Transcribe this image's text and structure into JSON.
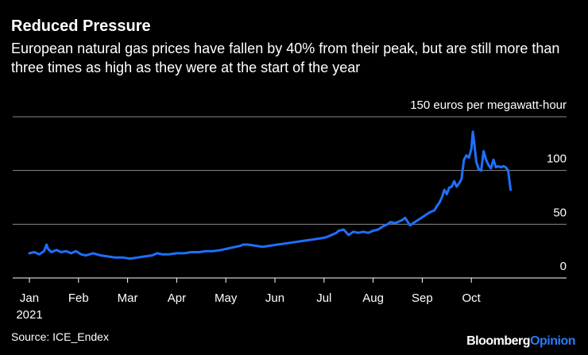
{
  "title": "Reduced Pressure",
  "subtitle": "European natural gas prices have fallen by 40% from their peak, but are still more than three times as high as they were at the start of the year",
  "source": "Source: ICE_Endex",
  "brand": {
    "part1": "Bloomberg",
    "part2": "Opinion"
  },
  "colors": {
    "background": "#000000",
    "line": "#1f6fff",
    "grid": "#8a8a8a",
    "text": "#ffffff",
    "brand_accent": "#2b7bf5"
  },
  "chart_data": {
    "type": "line",
    "title": "Reduced Pressure",
    "xlabel": "",
    "ylabel": "euros per megawatt-hour",
    "unit_label": "150 euros per megawatt-hour",
    "ylim": [
      0,
      150
    ],
    "yticks": [
      0,
      50,
      100,
      150
    ],
    "ytick_labels": [
      "0",
      "50",
      "100",
      "150 euros per megawatt-hour"
    ],
    "xlim": [
      0,
      11
    ],
    "xticks": [
      0,
      1,
      2,
      3,
      4,
      5,
      6,
      7,
      8,
      9
    ],
    "xtick_labels": [
      "Jan",
      "Feb",
      "Mar",
      "Apr",
      "May",
      "Jun",
      "Jul",
      "Aug",
      "Sep",
      "Oct"
    ],
    "year_label": "2021",
    "series": [
      {
        "name": "European natural gas price",
        "x": [
          0,
          0.1,
          0.2,
          0.3,
          0.35,
          0.38,
          0.45,
          0.55,
          0.65,
          0.75,
          0.85,
          0.95,
          1.05,
          1.15,
          1.3,
          1.45,
          1.6,
          1.75,
          1.9,
          2.05,
          2.2,
          2.35,
          2.5,
          2.6,
          2.7,
          2.85,
          3.0,
          3.15,
          3.3,
          3.45,
          3.6,
          3.75,
          3.9,
          4.0,
          4.1,
          4.2,
          4.3,
          4.35,
          4.45,
          4.6,
          4.75,
          4.9,
          5.05,
          5.2,
          5.35,
          5.5,
          5.65,
          5.8,
          5.95,
          6.05,
          6.15,
          6.25,
          6.3,
          6.4,
          6.5,
          6.6,
          6.7,
          6.8,
          6.9,
          7.0,
          7.1,
          7.2,
          7.3,
          7.35,
          7.45,
          7.5,
          7.55,
          7.6,
          7.65,
          7.75,
          7.85,
          7.95,
          8.05,
          8.15,
          8.25,
          8.3,
          8.35,
          8.4,
          8.45,
          8.5,
          8.55,
          8.6,
          8.65,
          8.7,
          8.75,
          8.8,
          8.85,
          8.9,
          8.95,
          9.0,
          9.03,
          9.06,
          9.1,
          9.15,
          9.2,
          9.25,
          9.3,
          9.35,
          9.4,
          9.45,
          9.5,
          9.55,
          9.6,
          9.65,
          9.7,
          9.75,
          9.8
        ],
        "values": [
          23,
          24,
          22,
          25,
          31,
          27,
          24,
          26,
          24,
          25,
          23,
          25,
          22,
          21,
          23,
          21,
          20,
          19,
          19,
          18,
          19,
          20,
          21,
          23,
          22,
          22,
          23,
          23,
          24,
          24,
          25,
          25,
          26,
          27,
          28,
          29,
          30,
          31,
          31,
          30,
          29,
          30,
          31,
          32,
          33,
          34,
          35,
          36,
          37,
          38,
          40,
          42,
          44,
          45,
          40,
          43,
          42,
          43,
          42,
          44,
          45,
          48,
          50,
          52,
          51,
          52,
          53,
          54,
          56,
          49,
          52,
          55,
          58,
          61,
          63,
          67,
          70,
          75,
          82,
          78,
          84,
          85,
          90,
          85,
          88,
          92,
          110,
          114,
          112,
          120,
          136,
          125,
          108,
          101,
          100,
          118,
          110,
          105,
          102,
          110,
          103,
          104,
          103,
          104,
          103,
          100,
          82
        ]
      }
    ]
  }
}
